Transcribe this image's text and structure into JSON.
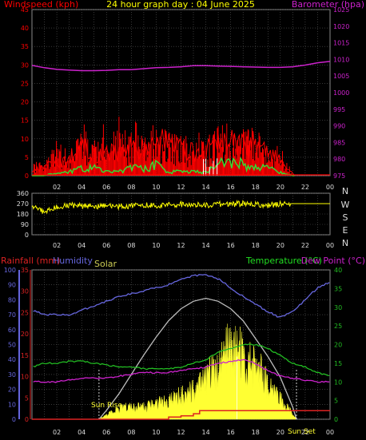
{
  "title": "24 hour graph day : 04 June 2025",
  "colors": {
    "background": "#000000",
    "grid": "#5a5a5a",
    "frame": "#8a8a8a",
    "windspeed": "#ff0000",
    "windgust": "#ff0000",
    "windavg": "#33dd33",
    "barometer": "#cc22cc",
    "direction": "#ffff00",
    "rainfall": "#dd2222",
    "humidity": "#6666dd",
    "solar": "#cccc55",
    "solar_fill": "#ffff33",
    "solar_max": "#bbbbbb",
    "temperature": "#22bb22",
    "dewpoint": "#cc22cc",
    "white": "#ffffff",
    "axis_text": "#dddddd"
  },
  "hour_ticks": [
    "02",
    "04",
    "06",
    "08",
    "10",
    "12",
    "14",
    "16",
    "18",
    "20",
    "22",
    "00"
  ],
  "panel1": {
    "left_label": "Windspeed (kph)",
    "right_label": "Barometer (hpa)",
    "left_ticks": [
      "0",
      "5",
      "10",
      "15",
      "20",
      "25",
      "30",
      "35",
      "40",
      "45"
    ],
    "right_ticks": [
      "975",
      "980",
      "985",
      "990",
      "995",
      "1000",
      "1005",
      "1010",
      "1015",
      "1020",
      "1025"
    ]
  },
  "panel2": {
    "left_ticks": [
      "0",
      "90",
      "180",
      "270",
      "360"
    ],
    "right_ticks": [
      "N",
      "E",
      "S",
      "W",
      "N"
    ]
  },
  "panel3": {
    "rain_label": "Rainfall (mm)",
    "humidity_label": "Humidity",
    "solar_label": "Solar",
    "temp_label": "Temperature (°C)",
    "dew_label": "Dew Point (°C)",
    "left_ticks": [
      "0",
      "10",
      "20",
      "30",
      "40",
      "50",
      "60",
      "70",
      "80",
      "90",
      "100"
    ],
    "rain_ticks": [
      "0",
      "5",
      "10",
      "15",
      "20",
      "25",
      "30",
      "35"
    ],
    "right_ticks": [
      "0",
      "5",
      "10",
      "15",
      "20",
      "25",
      "30",
      "35",
      "40"
    ],
    "sunrise_label": "Sun Rise",
    "sunset_label": "Sun Set"
  },
  "chart_data": [
    {
      "type": "line",
      "title": "24 hour graph day : 04 June 2025",
      "ylabel": "Windspeed (kph)",
      "y2label": "Barometer (hpa)",
      "ylim": [
        0,
        45
      ],
      "y2lim": [
        975,
        1025
      ],
      "x_hours": [
        0,
        24
      ],
      "series": [
        {
          "name": "Windspeed (kph)",
          "axis": "left",
          "x": [
            0,
            1,
            2,
            3,
            4,
            5,
            6,
            7,
            8,
            9,
            10,
            11,
            12,
            13,
            14,
            15,
            16,
            17,
            18,
            19,
            20,
            21,
            22,
            23,
            24
          ],
          "y": [
            2,
            3,
            5,
            6,
            10,
            8,
            8,
            9,
            10,
            9,
            12,
            12,
            10,
            8,
            9,
            11,
            13,
            12,
            11,
            9,
            5,
            1,
            0,
            0,
            0
          ]
        },
        {
          "axis": "left",
          "x": [
            0,
            1,
            2,
            3,
            4,
            5,
            6,
            7,
            8,
            9,
            10,
            11,
            12,
            13,
            14,
            15,
            16,
            17,
            18,
            19,
            20,
            21,
            22,
            23,
            24
          ],
          "y": [
            5,
            6,
            12,
            10,
            16,
            16,
            14,
            18,
            16,
            16,
            20,
            16,
            15,
            12,
            14,
            18,
            20,
            18,
            17,
            12,
            8,
            2,
            0,
            0,
            0
          ]
        },
        {
          "axis": "left",
          "x": [
            0,
            1,
            2,
            3,
            4,
            5,
            6,
            7,
            8,
            9,
            10,
            11,
            12,
            13,
            14,
            15,
            16,
            17,
            18,
            19,
            20,
            21,
            22,
            23,
            24
          ],
          "y": [
            0,
            0,
            1,
            1,
            2,
            2,
            1,
            1,
            2,
            2,
            3,
            1,
            1,
            1,
            1,
            3,
            4,
            3,
            2,
            2,
            1,
            0,
            0,
            0,
            0
          ]
        },
        {
          "name": "Barometer (hpa)",
          "axis": "right",
          "x": [
            0,
            1,
            2,
            3,
            4,
            5,
            6,
            7,
            8,
            9,
            10,
            11,
            12,
            13,
            14,
            15,
            16,
            17,
            18,
            19,
            20,
            21,
            22,
            23,
            24
          ],
          "y": [
            1008.2,
            1007.5,
            1007.0,
            1006.8,
            1006.6,
            1006.6,
            1006.7,
            1006.9,
            1006.9,
            1007.2,
            1007.5,
            1007.6,
            1007.8,
            1008.1,
            1008.1,
            1008.0,
            1007.9,
            1007.8,
            1007.7,
            1007.6,
            1007.6,
            1007.8,
            1008.3,
            1009.0,
            1009.4
          ]
        }
      ]
    },
    {
      "type": "line",
      "ylim": [
        0,
        360
      ],
      "x_hours": [
        0,
        24
      ],
      "series": [
        {
          "axis": "left",
          "x": [
            0,
            0.5,
            1,
            1.5,
            2,
            3,
            4,
            5,
            6,
            7,
            8,
            9,
            10,
            11,
            12,
            13,
            14,
            15,
            16,
            17,
            18,
            19,
            20,
            21,
            22,
            23,
            24
          ],
          "y": [
            250,
            230,
            190,
            215,
            245,
            255,
            250,
            245,
            250,
            245,
            250,
            255,
            255,
            260,
            265,
            260,
            255,
            265,
            265,
            270,
            265,
            255,
            265,
            270,
            270,
            270,
            270
          ]
        }
      ]
    },
    {
      "type": "line",
      "ylabel": "Humidity",
      "y2label": "Temperature (°C)",
      "ylim": [
        0,
        100
      ],
      "rain_lim": [
        0,
        35
      ],
      "temp_lim": [
        0,
        40
      ],
      "solar_lim": [
        0,
        100
      ],
      "x_hours": [
        0,
        24
      ],
      "sunrise_hour": 5.4,
      "sunset_hour": 21.3,
      "series": [
        {
          "name": "Humidity",
          "axis": "left",
          "x": [
            0,
            1,
            2,
            3,
            4,
            5,
            6,
            7,
            8,
            9,
            10,
            11,
            12,
            13,
            14,
            15,
            16,
            17,
            18,
            19,
            20,
            21,
            22,
            23,
            24
          ],
          "y": [
            73,
            70,
            70,
            70,
            73,
            76,
            79,
            82,
            84,
            86,
            88,
            90,
            94,
            96,
            97,
            94,
            88,
            82,
            77,
            72,
            68,
            72,
            80,
            88,
            92
          ]
        },
        {
          "name": "Temperature (°C)",
          "axis": "temp",
          "x": [
            0,
            1,
            2,
            3,
            4,
            5,
            6,
            7,
            8,
            9,
            10,
            11,
            12,
            13,
            14,
            15,
            16,
            17,
            18,
            19,
            20,
            21,
            22,
            23,
            24
          ],
          "y": [
            14,
            15,
            15,
            15.5,
            15.5,
            15,
            14.5,
            14,
            14,
            13.5,
            13.5,
            13.5,
            14,
            15,
            16,
            18,
            19,
            20,
            20,
            19,
            17,
            15,
            14,
            12.5,
            11.5
          ]
        },
        {
          "name": "Dew Point (°C)",
          "axis": "temp",
          "x": [
            0,
            1,
            2,
            3,
            4,
            5,
            6,
            7,
            8,
            9,
            10,
            11,
            12,
            13,
            14,
            15,
            16,
            17,
            18,
            19,
            20,
            21,
            22,
            23,
            24
          ],
          "y": [
            10,
            10,
            10,
            10.5,
            11,
            11,
            11,
            11.5,
            12,
            12.5,
            12.5,
            12.5,
            13,
            13.5,
            14,
            15,
            15.5,
            16,
            15,
            13,
            11.5,
            11,
            10.5,
            10,
            10
          ]
        },
        {
          "name": "Rainfall (mm)",
          "axis": "rain",
          "x": [
            0,
            10,
            11,
            12,
            13,
            13.5,
            18,
            20,
            24
          ],
          "y": [
            0,
            0,
            0.5,
            0.8,
            1.3,
            2.0,
            2.0,
            2.0,
            2.0
          ]
        },
        {
          "axis": "solar",
          "x": [
            5.4,
            6,
            7,
            8,
            9,
            10,
            11,
            12,
            13,
            14,
            15,
            16,
            17,
            18,
            19,
            20,
            21,
            21.3
          ],
          "y": [
            0,
            6,
            17,
            30,
            43,
            55,
            66,
            74,
            79,
            81,
            79,
            74,
            66,
            54,
            42,
            28,
            8,
            0
          ]
        },
        {
          "name": "Solar",
          "axis": "solar",
          "x": [
            5.4,
            6,
            7,
            8,
            9,
            10,
            11,
            12,
            13,
            14,
            15,
            16,
            17,
            18,
            19,
            20,
            21,
            21.3
          ],
          "y": [
            0,
            3,
            8,
            10,
            9,
            12,
            14,
            18,
            22,
            30,
            42,
            55,
            50,
            42,
            28,
            15,
            4,
            0
          ]
        }
      ]
    }
  ]
}
